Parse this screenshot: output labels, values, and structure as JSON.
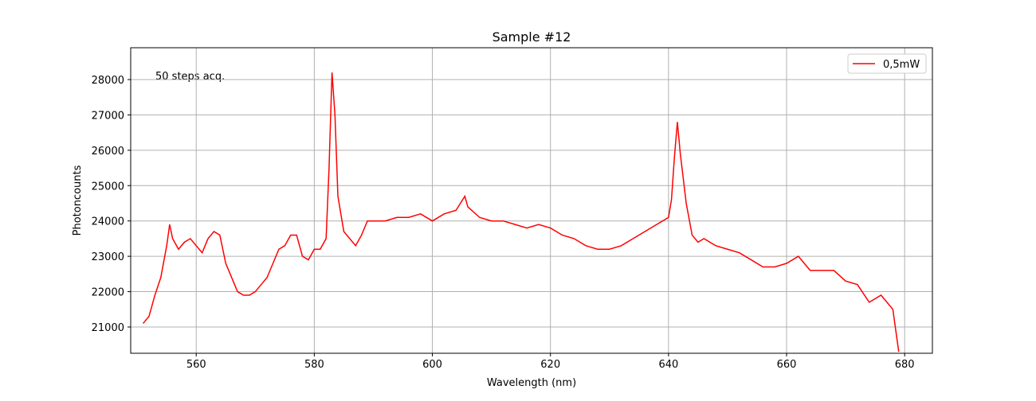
{
  "chart_data": {
    "type": "line",
    "title": "Sample #12",
    "xlabel": "Wavelength (nm)",
    "ylabel": "Photoncounts",
    "annotation": "50 steps acq.",
    "x": [
      551,
      552,
      553,
      554,
      555,
      555.5,
      556,
      557,
      558,
      559,
      560,
      561,
      562,
      563,
      564,
      565,
      566,
      567,
      568,
      569,
      570,
      571,
      572,
      573,
      574,
      575,
      576,
      577,
      578,
      579,
      580,
      581,
      582,
      582.5,
      583,
      583.5,
      584,
      585,
      586,
      587,
      588,
      589,
      590,
      592,
      594,
      596,
      598,
      600,
      602,
      604,
      605.5,
      606,
      608,
      610,
      612,
      614,
      616,
      618,
      620,
      622,
      624,
      626,
      628,
      630,
      632,
      634,
      636,
      638,
      640,
      640.5,
      641,
      641.5,
      642,
      643,
      644,
      645,
      646,
      648,
      650,
      652,
      654,
      656,
      658,
      660,
      662,
      664,
      666,
      668,
      670,
      672,
      674,
      676,
      677,
      678,
      679
    ],
    "series": [
      {
        "name": "0,5mW",
        "color": "#ff0000",
        "values": [
          21100,
          21300,
          21900,
          22400,
          23300,
          23900,
          23500,
          23200,
          23400,
          23500,
          23300,
          23100,
          23500,
          23700,
          23600,
          22800,
          22400,
          22000,
          21900,
          21900,
          22000,
          22200,
          22400,
          22800,
          23200,
          23300,
          23600,
          23600,
          23000,
          22900,
          23200,
          23200,
          23500,
          25500,
          28200,
          27000,
          24700,
          23700,
          23500,
          23300,
          23600,
          24000,
          24000,
          24000,
          24100,
          24100,
          24200,
          24000,
          24200,
          24300,
          24700,
          24400,
          24100,
          24000,
          24000,
          23900,
          23800,
          23900,
          23800,
          23600,
          23500,
          23300,
          23200,
          23200,
          23300,
          23500,
          23700,
          23900,
          24100,
          24600,
          25800,
          26800,
          25900,
          24500,
          23600,
          23400,
          23500,
          23300,
          23200,
          23100,
          22900,
          22700,
          22700,
          22800,
          23000,
          22600,
          22600,
          22600,
          22300,
          22200,
          21700,
          21900,
          21700,
          21500,
          20300
        ]
      }
    ],
    "xlim": [
      548.9,
      684.7
    ],
    "ylim": [
      20257,
      28900
    ],
    "xticks": [
      560,
      580,
      600,
      620,
      640,
      660,
      680
    ],
    "yticks": [
      21000,
      22000,
      23000,
      24000,
      25000,
      26000,
      27000,
      28000
    ],
    "grid": true,
    "legend": "upper right"
  }
}
